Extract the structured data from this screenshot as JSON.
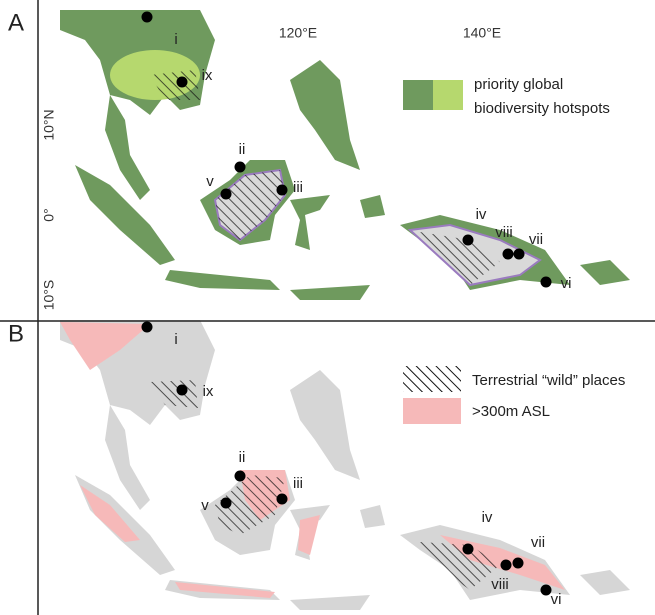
{
  "panels": [
    {
      "label": "A",
      "lon_labels": [
        "120°E",
        "140°E"
      ],
      "lat_labels": [
        "10°N",
        "0°",
        "10°S"
      ],
      "sites": [
        "i",
        "ix",
        "ii",
        "v",
        "iii",
        "iv",
        "viii",
        "vii",
        "vi"
      ],
      "legend": [
        "priority global",
        "biodiversity hotspots"
      ]
    },
    {
      "label": "B",
      "sites": [
        "i",
        "ix",
        "ii",
        "v",
        "iii",
        "iv",
        "vii",
        "viii",
        "vi"
      ],
      "legend": [
        "Terrestrial “wild” places",
        ">300m ASL"
      ]
    }
  ]
}
